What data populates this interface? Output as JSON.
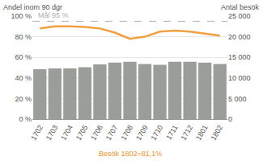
{
  "chart_data": {
    "type": "bar",
    "categories": [
      "1702",
      "1703",
      "1704",
      "1705",
      "1706",
      "1707",
      "1708",
      "1709",
      "1710",
      "1711",
      "1712",
      "1801",
      "1802"
    ],
    "series": [
      {
        "name": "Antal besök",
        "type": "bar",
        "axis": "y2",
        "color": "#9b9e98",
        "values": [
          12100,
          12300,
          12300,
          12600,
          13300,
          13700,
          13900,
          13400,
          13200,
          13900,
          13900,
          13700,
          13400
        ]
      },
      {
        "name": "Andel inom 90 dgr",
        "type": "line",
        "color": "#f0a040",
        "values": [
          88,
          90,
          90,
          89.5,
          88,
          84,
          78,
          80,
          85,
          86,
          85,
          83,
          81.1
        ]
      }
    ],
    "y_label": "Andel inom 90 dgr",
    "y2_label": "Antal besök",
    "ylim": [
      0,
      100
    ],
    "yticks": [
      {
        "value": 0,
        "label": "0 %"
      },
      {
        "value": 20,
        "label": "20 %"
      },
      {
        "value": 40,
        "label": "40 %"
      },
      {
        "value": 60,
        "label": "60 %"
      },
      {
        "value": 80,
        "label": "80 %"
      },
      {
        "value": 100,
        "label": "100 %"
      }
    ],
    "y2lim": [
      0,
      25000
    ],
    "y2ticks": [
      0,
      {
        "value": 5000,
        "label": "5 000"
      },
      {
        "value": 10000,
        "label": "10 000"
      },
      {
        "value": 15000,
        "label": "15 000"
      },
      {
        "value": 20000,
        "label": "20 000"
      },
      {
        "value": 25000,
        "label": "25 000"
      }
    ],
    "target": {
      "value": 95,
      "label": "Mål 95 %",
      "color": "#b0b0b0",
      "line_style": "dash"
    },
    "footnote": {
      "text": "Besök 1802=81,1%",
      "color": "#e8902a"
    },
    "grid": true
  }
}
